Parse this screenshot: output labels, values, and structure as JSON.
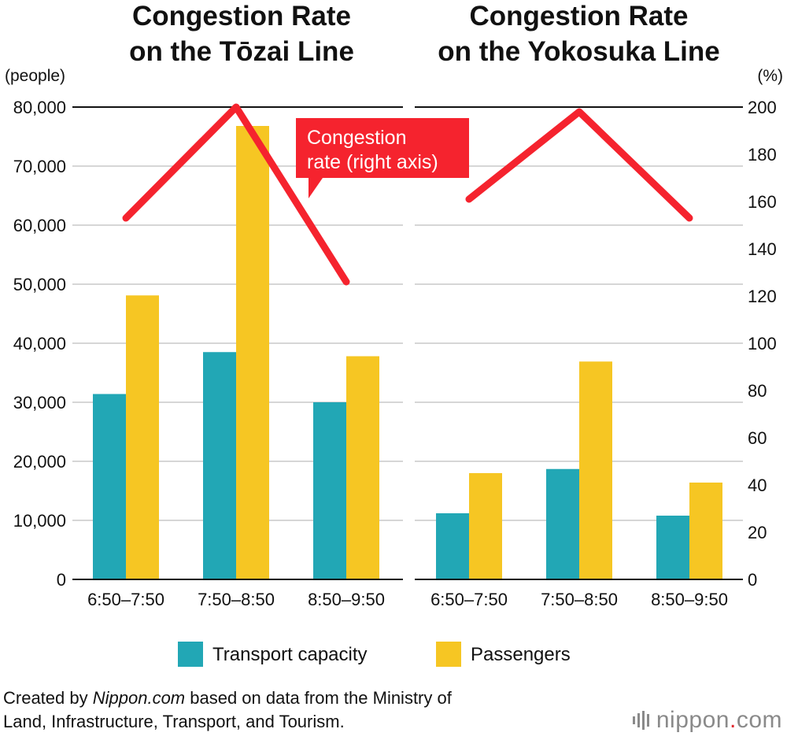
{
  "chart_data": [
    {
      "type": "bar",
      "title": "Congestion Rate on the Tōzai Line",
      "title_lines": [
        "Congestion Rate",
        "on the Tōzai Line"
      ],
      "categories": [
        "6:50–7:50",
        "7:50–8:50",
        "8:50–9:50"
      ],
      "series": [
        {
          "name": "Transport capacity",
          "values": [
            31400,
            38500,
            30000
          ],
          "color": "#22a7b5"
        },
        {
          "name": "Passengers",
          "values": [
            48100,
            76800,
            37800
          ],
          "color": "#f6c623"
        }
      ],
      "line_series": {
        "name": "Congestion rate",
        "axis": "right",
        "values": [
          153,
          200,
          126
        ],
        "color": "#f5232e"
      },
      "ylabel": "(people)",
      "ylim": [
        0,
        80000
      ],
      "yticks": [
        "0",
        "10,000",
        "20,000",
        "30,000",
        "40,000",
        "50,000",
        "60,000",
        "70,000",
        "80,000"
      ]
    },
    {
      "type": "bar",
      "title": "Congestion Rate on the Yokosuka Line",
      "title_lines": [
        "Congestion Rate",
        "on the Yokosuka Line"
      ],
      "categories": [
        "6:50–7:50",
        "7:50–8:50",
        "8:50–9:50"
      ],
      "series": [
        {
          "name": "Transport capacity",
          "values": [
            11200,
            18700,
            10800
          ],
          "color": "#22a7b5"
        },
        {
          "name": "Passengers",
          "values": [
            18000,
            36900,
            16400
          ],
          "color": "#f6c623"
        }
      ],
      "line_series": {
        "name": "Congestion rate",
        "axis": "right",
        "values": [
          161,
          198,
          153
        ],
        "color": "#f5232e"
      },
      "y2label": "(%)",
      "y2lim": [
        0,
        200
      ],
      "y2ticks": [
        "0",
        "20",
        "40",
        "60",
        "80",
        "100",
        "120",
        "140",
        "160",
        "180",
        "200"
      ]
    }
  ],
  "callout": {
    "lines": [
      "Congestion",
      "rate (right axis)"
    ]
  },
  "legend": {
    "items": [
      {
        "label": "Transport capacity",
        "color": "#22a7b5"
      },
      {
        "label": "Passengers",
        "color": "#f6c623"
      }
    ]
  },
  "footer": {
    "prefix": "Created by ",
    "site": "Nippon.com",
    "line1_rest": " based on data from the Ministry of",
    "line2": "Land, Infrastructure, Transport, and Tourism."
  },
  "brand": {
    "name": "nippon",
    "dot": ".",
    "tld": "com"
  }
}
